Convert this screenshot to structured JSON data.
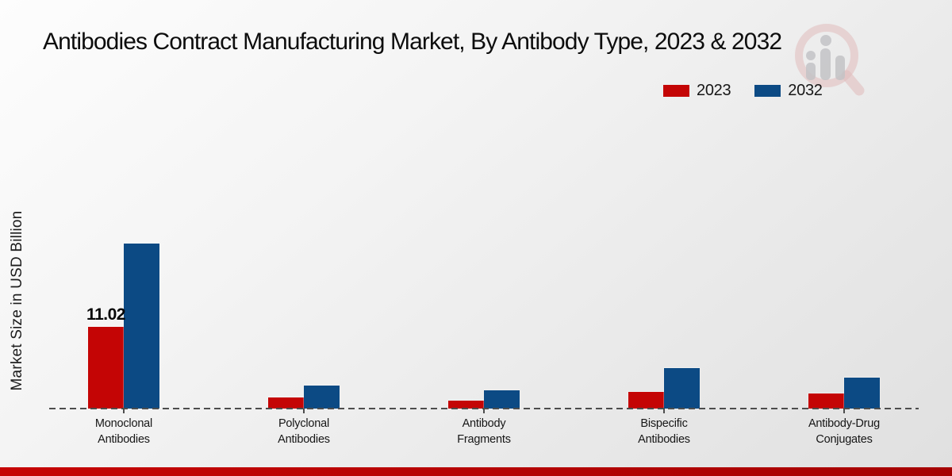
{
  "title": "Antibodies Contract Manufacturing Market, By Antibody Type, 2023 & 2032",
  "y_axis_label": "Market Size in USD Billion",
  "legend": {
    "items": [
      {
        "label": "2023",
        "color": "#c40505"
      },
      {
        "label": "2032",
        "color": "#0c4a84"
      }
    ]
  },
  "watermark_icon": "magnifier-bar-chart-logo-watermark",
  "colors": {
    "series_2023": "#c40505",
    "series_2032": "#0c4a84",
    "baseline": "#4d4d4d",
    "footer_strip": "#c60404",
    "title_text": "#0d0d0d"
  },
  "chart_data": {
    "type": "bar",
    "title": "Antibodies Contract Manufacturing Market, By Antibody Type, 2023 & 2032",
    "ylabel": "Market Size in USD Billion",
    "xlabel": "",
    "legend_position": "top-right",
    "grid": false,
    "baseline_style": "dashed",
    "categories": [
      "Monoclonal\nAntibodies",
      "Polyclonal\nAntibodies",
      "Antibody\nFragments",
      "Bispecific\nAntibodies",
      "Antibody-Drug\nConjugates"
    ],
    "series": [
      {
        "name": "2023",
        "color": "#c40505",
        "values": [
          11.02,
          1.5,
          1.1,
          2.2,
          2.0
        ],
        "data_labels": [
          "11.02",
          "",
          "",
          "",
          ""
        ]
      },
      {
        "name": "2032",
        "color": "#0c4a84",
        "values": [
          22.2,
          3.1,
          2.4,
          5.4,
          4.2
        ],
        "data_labels": [
          "",
          "",
          "",
          "",
          ""
        ]
      }
    ],
    "ylim": [
      0,
      24
    ]
  }
}
